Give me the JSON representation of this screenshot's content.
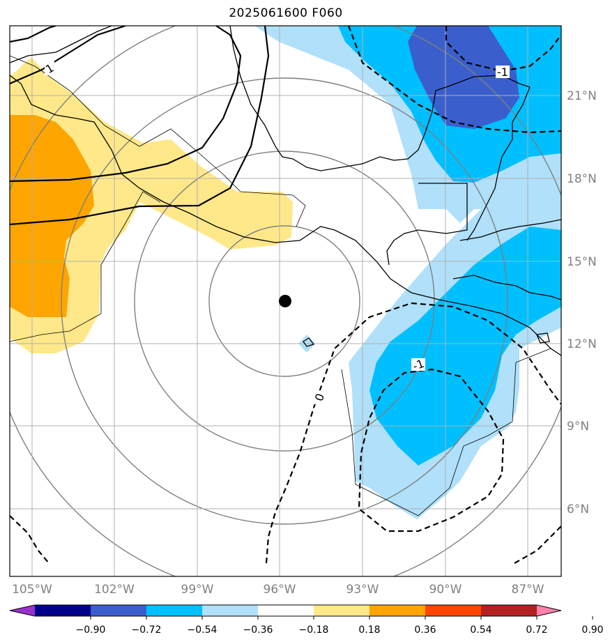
{
  "title": "2025061600 F060",
  "map": {
    "lon_ticks": [
      "105°W",
      "102°W",
      "99°W",
      "96°W",
      "93°W",
      "90°W",
      "87°W"
    ],
    "lat_ticks": [
      "21°N",
      "18°N",
      "15°N",
      "12°N",
      "9°N",
      "6°N"
    ],
    "contour_labels": [
      "1",
      "-1",
      "0",
      "-1"
    ],
    "center_marker": {
      "lon": -95.8,
      "lat": 13.5
    }
  },
  "colorbar": {
    "ticks": [
      "−0.90",
      "−0.72",
      "−0.54",
      "−0.36",
      "−0.18",
      "0.18",
      "0.36",
      "0.54",
      "0.72",
      "0.90"
    ],
    "colors": [
      "#9932cc",
      "#00008b",
      "#3a5fcd",
      "#00bfff",
      "#b0e0fa",
      "#ffffff",
      "#ffe88a",
      "#ffa500",
      "#ff4500",
      "#b22222",
      "#ff82ab"
    ]
  }
}
